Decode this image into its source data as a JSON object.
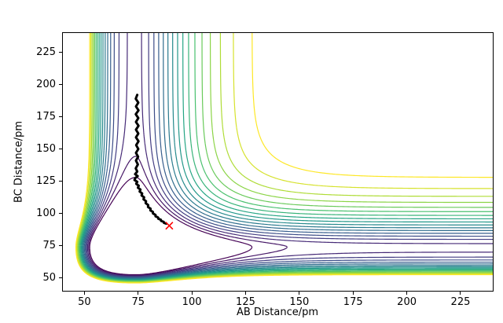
{
  "chart_data": {
    "type": "contour",
    "title": "",
    "xlabel": "AB Distance/pm",
    "ylabel": "BC Distance/pm",
    "xlim": [
      40,
      240
    ],
    "ylim": [
      40,
      240
    ],
    "xticks": [
      50,
      75,
      100,
      125,
      150,
      175,
      200,
      225
    ],
    "yticks": [
      50,
      75,
      100,
      125,
      150,
      175,
      200,
      225
    ],
    "grid": false,
    "legend": "none",
    "colormap": "viridis",
    "colormap_stops": [
      [
        0.0,
        "#440154"
      ],
      [
        0.14,
        "#46327e"
      ],
      [
        0.29,
        "#365c8d"
      ],
      [
        0.43,
        "#277f8e"
      ],
      [
        0.57,
        "#1fa187"
      ],
      [
        0.71,
        "#4ac16d"
      ],
      [
        0.86,
        "#a0da39"
      ],
      [
        1.0,
        "#fde725"
      ]
    ],
    "surface_model": {
      "description": "L-shaped potential energy surface valley with minimum channel near 74 pm on each axis, steep repulsive wall at small distances and plateau at large distances",
      "type": "asymmetric-morse-sum",
      "re": 74,
      "a_in": 0.031,
      "a_out": 0.055,
      "D": 1.0
    },
    "levels": [
      0.9,
      0.9588,
      1.0176,
      1.0765,
      1.1353,
      1.1941,
      1.2529,
      1.3118,
      1.3706,
      1.4294,
      1.4882,
      1.5471,
      1.6059,
      1.6647,
      1.7235,
      1.7824,
      1.8412,
      1.9
    ],
    "contour_linewidth": 1.2,
    "trajectory": {
      "color": "#000000",
      "linewidth": 3,
      "points": [
        [
          74.6,
          192
        ],
        [
          73.9,
          189
        ],
        [
          75.1,
          186
        ],
        [
          74.0,
          183
        ],
        [
          75.2,
          180
        ],
        [
          73.9,
          177
        ],
        [
          75.1,
          174
        ],
        [
          74.0,
          171
        ],
        [
          75.2,
          168
        ],
        [
          74.0,
          165
        ],
        [
          75.1,
          162
        ],
        [
          74.0,
          159
        ],
        [
          75.2,
          156
        ],
        [
          74.1,
          153
        ],
        [
          75.1,
          150
        ],
        [
          74.0,
          147
        ],
        [
          75.0,
          144
        ],
        [
          74.0,
          141
        ],
        [
          74.9,
          138
        ],
        [
          73.9,
          135
        ],
        [
          74.6,
          132.5
        ],
        [
          73.6,
          130.5
        ],
        [
          74.8,
          129
        ],
        [
          73.7,
          127.5
        ],
        [
          73.3,
          126
        ],
        [
          74.6,
          124.5
        ],
        [
          74.1,
          123
        ],
        [
          75.3,
          121.5
        ],
        [
          74.9,
          120
        ],
        [
          76.1,
          118.5
        ],
        [
          75.7,
          117
        ],
        [
          76.9,
          115.5
        ],
        [
          76.6,
          114
        ],
        [
          77.8,
          112.5
        ],
        [
          77.5,
          111
        ],
        [
          78.7,
          109.5
        ],
        [
          78.5,
          108
        ],
        [
          79.7,
          106.5
        ],
        [
          79.6,
          105
        ],
        [
          80.8,
          103.7
        ],
        [
          80.7,
          102.4
        ],
        [
          81.9,
          101.2
        ],
        [
          81.9,
          100
        ],
        [
          83.1,
          98.9
        ],
        [
          83.1,
          97.8
        ],
        [
          84.3,
          96.9
        ],
        [
          84.4,
          95.9
        ],
        [
          85.6,
          95.1
        ],
        [
          85.7,
          94.2
        ],
        [
          86.9,
          93.5
        ],
        [
          87.0,
          92.7
        ],
        [
          88.1,
          92.1
        ]
      ]
    },
    "marker": {
      "symbol": "x",
      "x": 89.5,
      "y": 90.5,
      "color": "#ff0000",
      "size": 4.5
    }
  }
}
